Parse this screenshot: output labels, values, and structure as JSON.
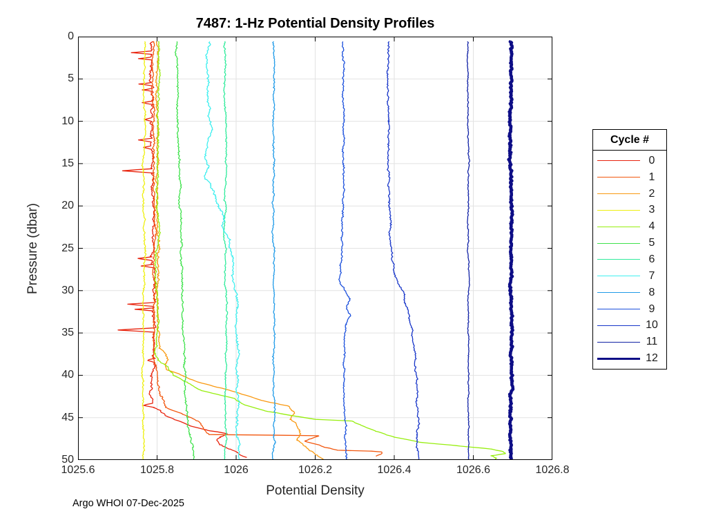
{
  "title": "7487: 1-Hz Potential Density Profiles",
  "annotation": "Argo WHOI 07-Dec-2025",
  "chart_data": {
    "type": "line",
    "title": "7487: 1-Hz Potential Density Profiles",
    "xlabel": "Potential Density",
    "ylabel": "Pressure (dbar)",
    "xlim": [
      1025.6,
      1026.8
    ],
    "ylim": [
      0,
      50
    ],
    "y_inverted": true,
    "grid": true,
    "grid_color": "#e2e2e2",
    "x_tick_values": [
      1025.6,
      1025.8,
      1026,
      1026.2,
      1026.4,
      1026.6,
      1026.8
    ],
    "x_tick_labels": [
      "1025.6",
      "1025.8",
      "1026",
      "1026.2",
      "1026.4",
      "1026.6",
      "1026.8"
    ],
    "y_tick_values": [
      0,
      5,
      10,
      15,
      20,
      25,
      30,
      35,
      40,
      45,
      50
    ],
    "y_tick_labels": [
      "0",
      "5",
      "10",
      "15",
      "20",
      "25",
      "30",
      "35",
      "40",
      "45",
      "50"
    ],
    "legend_title": "Cycle #",
    "legend_position": "right-outside",
    "series": [
      {
        "name": "0",
        "color": "#e8220c",
        "width": 1.3,
        "noise": 0.0045,
        "points": [
          [
            0.6,
            1025.785
          ],
          [
            1.7,
            1025.785
          ],
          [
            1.9,
            1025.735
          ],
          [
            2.1,
            1025.786
          ],
          [
            2.45,
            1025.786
          ],
          [
            2.6,
            1025.752
          ],
          [
            2.75,
            1025.787
          ],
          [
            5.45,
            1025.786
          ],
          [
            5.6,
            1025.757
          ],
          [
            5.8,
            1025.787
          ],
          [
            6.1,
            1025.787
          ],
          [
            6.3,
            1025.762
          ],
          [
            6.5,
            1025.786
          ],
          [
            7.6,
            1025.786
          ],
          [
            7.8,
            1025.763
          ],
          [
            8.0,
            1025.786
          ],
          [
            9.6,
            1025.787
          ],
          [
            9.8,
            1025.77
          ],
          [
            10.0,
            1025.787
          ],
          [
            12.0,
            1025.787
          ],
          [
            12.2,
            1025.752
          ],
          [
            12.45,
            1025.788
          ],
          [
            12.9,
            1025.787
          ],
          [
            13.1,
            1025.766
          ],
          [
            13.3,
            1025.787
          ],
          [
            15.6,
            1025.788
          ],
          [
            15.85,
            1025.717
          ],
          [
            16.1,
            1025.788
          ],
          [
            20.0,
            1025.789
          ],
          [
            26.0,
            1025.789
          ],
          [
            26.2,
            1025.758
          ],
          [
            26.45,
            1025.789
          ],
          [
            26.9,
            1025.789
          ],
          [
            27.1,
            1025.763
          ],
          [
            27.3,
            1025.79
          ],
          [
            31.4,
            1025.789
          ],
          [
            31.6,
            1025.722
          ],
          [
            31.85,
            1025.789
          ],
          [
            32.05,
            1025.789
          ],
          [
            32.2,
            1025.742
          ],
          [
            32.4,
            1025.79
          ],
          [
            34.4,
            1025.79
          ],
          [
            34.65,
            1025.699
          ],
          [
            34.9,
            1025.79
          ],
          [
            38.0,
            1025.79
          ],
          [
            38.25,
            1025.77
          ],
          [
            38.5,
            1025.79
          ],
          [
            43.3,
            1025.788
          ],
          [
            43.55,
            1025.764
          ],
          [
            43.8,
            1025.79
          ],
          [
            44.2,
            1025.806
          ],
          [
            44.8,
            1025.822
          ],
          [
            45.4,
            1025.853
          ],
          [
            46.0,
            1025.885
          ],
          [
            46.5,
            1025.93
          ],
          [
            46.9,
            1025.975
          ],
          [
            47.3,
            1025.955
          ],
          [
            47.7,
            1025.948
          ],
          [
            48.2,
            1025.96
          ],
          [
            48.7,
            1025.985
          ],
          [
            49.1,
            1026.009
          ],
          [
            49.45,
            1026.018
          ],
          [
            49.7,
            1026.028
          ]
        ]
      },
      {
        "name": "1",
        "color": "#f2560d",
        "width": 1.3,
        "noise": 0.0032,
        "points": [
          [
            0.6,
            1025.791
          ],
          [
            10,
            1025.792
          ],
          [
            20,
            1025.793
          ],
          [
            30,
            1025.794
          ],
          [
            38,
            1025.795
          ],
          [
            40.5,
            1025.8
          ],
          [
            42.5,
            1025.812
          ],
          [
            43.8,
            1025.825
          ],
          [
            44.6,
            1025.868
          ],
          [
            45.4,
            1025.905
          ],
          [
            46.3,
            1025.92
          ],
          [
            47.0,
            1025.93
          ],
          [
            47.08,
            1026.115
          ],
          [
            47.14,
            1026.21
          ],
          [
            47.5,
            1026.19
          ],
          [
            47.8,
            1026.175
          ],
          [
            48.2,
            1026.21
          ],
          [
            48.5,
            1026.225
          ],
          [
            48.85,
            1026.258
          ],
          [
            48.95,
            1026.34
          ],
          [
            49.05,
            1026.37
          ],
          [
            49.35,
            1026.368
          ],
          [
            49.55,
            1026.355
          ]
        ]
      },
      {
        "name": "2",
        "color": "#f9980f",
        "width": 1.3,
        "noise": 0.0032,
        "points": [
          [
            0.6,
            1025.799
          ],
          [
            10,
            1025.8
          ],
          [
            20,
            1025.802
          ],
          [
            30,
            1025.803
          ],
          [
            35.5,
            1025.805
          ],
          [
            36.8,
            1025.812
          ],
          [
            38.0,
            1025.83
          ],
          [
            39.3,
            1025.822
          ],
          [
            40.1,
            1025.868
          ],
          [
            40.8,
            1025.904
          ],
          [
            41.8,
            1025.984
          ],
          [
            43.0,
            1026.066
          ],
          [
            43.6,
            1026.131
          ],
          [
            44.5,
            1026.15
          ],
          [
            45.2,
            1026.138
          ],
          [
            45.9,
            1026.155
          ],
          [
            46.6,
            1026.162
          ],
          [
            47.6,
            1026.154
          ],
          [
            48.4,
            1026.178
          ],
          [
            48.9,
            1026.19
          ],
          [
            49.4,
            1026.205
          ],
          [
            49.9,
            1026.222
          ]
        ]
      },
      {
        "name": "3",
        "color": "#eef00d",
        "width": 1.3,
        "noise": 0.0028,
        "points": [
          [
            0.6,
            1025.768
          ],
          [
            15,
            1025.767
          ],
          [
            30,
            1025.766
          ],
          [
            45,
            1025.765
          ],
          [
            50,
            1025.764
          ]
        ]
      },
      {
        "name": "4",
        "color": "#96ee0d",
        "width": 1.3,
        "noise": 0.0032,
        "points": [
          [
            0.6,
            1025.803
          ],
          [
            10,
            1025.802
          ],
          [
            20,
            1025.801
          ],
          [
            30,
            1025.8
          ],
          [
            36.5,
            1025.8
          ],
          [
            37.3,
            1025.792
          ],
          [
            38.2,
            1025.803
          ],
          [
            38.9,
            1025.822
          ],
          [
            40.0,
            1025.84
          ],
          [
            40.8,
            1025.872
          ],
          [
            41.8,
            1025.906
          ],
          [
            42.7,
            1025.991
          ],
          [
            43.5,
            1026.02
          ],
          [
            44.2,
            1026.072
          ],
          [
            44.8,
            1026.148
          ],
          [
            45.2,
            1026.2
          ],
          [
            45.4,
            1026.295
          ],
          [
            45.9,
            1026.315
          ],
          [
            46.6,
            1026.35
          ],
          [
            47.3,
            1026.4
          ],
          [
            47.9,
            1026.46
          ],
          [
            48.3,
            1026.55
          ],
          [
            48.7,
            1026.64
          ],
          [
            49.0,
            1026.668
          ],
          [
            49.25,
            1026.678
          ],
          [
            49.5,
            1026.643
          ],
          [
            49.8,
            1026.658
          ],
          [
            50,
            1026.655
          ]
        ]
      },
      {
        "name": "5",
        "color": "#3ee24b",
        "width": 1.3,
        "noise": 0.003,
        "points": [
          [
            0.6,
            1025.851
          ],
          [
            10,
            1025.855
          ],
          [
            20,
            1025.858
          ],
          [
            30,
            1025.864
          ],
          [
            38,
            1025.868
          ],
          [
            42,
            1025.872
          ],
          [
            45,
            1025.878
          ],
          [
            47,
            1025.882
          ],
          [
            48.5,
            1025.888
          ],
          [
            50,
            1025.89
          ]
        ]
      },
      {
        "name": "6",
        "color": "#2feb9b",
        "width": 1.3,
        "noise": 0.0026,
        "points": [
          [
            0.6,
            1025.973
          ],
          [
            8,
            1025.971
          ],
          [
            12,
            1025.976
          ],
          [
            20,
            1025.972
          ],
          [
            28,
            1025.974
          ],
          [
            36,
            1025.976
          ],
          [
            44,
            1025.973
          ],
          [
            50,
            1025.974
          ]
        ]
      },
      {
        "name": "7",
        "color": "#3fefef",
        "width": 1.3,
        "noise": 0.004,
        "points": [
          [
            0.6,
            1025.932
          ],
          [
            4,
            1025.931
          ],
          [
            7,
            1025.928
          ],
          [
            9,
            1025.933
          ],
          [
            11,
            1025.94
          ],
          [
            12,
            1025.928
          ],
          [
            14.5,
            1025.92
          ],
          [
            15.5,
            1025.928
          ],
          [
            16.5,
            1025.918
          ],
          [
            17.5,
            1025.932
          ],
          [
            18.8,
            1025.948
          ],
          [
            20,
            1025.958
          ],
          [
            21.3,
            1025.973
          ],
          [
            22.5,
            1025.968
          ],
          [
            24,
            1025.984
          ],
          [
            26,
            1025.99
          ],
          [
            28,
            1025.988
          ],
          [
            30,
            1025.995
          ],
          [
            32,
            1026.002
          ],
          [
            34,
            1025.998
          ],
          [
            36,
            1026.004
          ],
          [
            38,
            1026.0
          ],
          [
            40,
            1026.004
          ],
          [
            42,
            1026.0
          ],
          [
            44,
            1026.004
          ],
          [
            46,
            1026.002
          ],
          [
            48,
            1026.006
          ],
          [
            50,
            1026.009
          ]
        ]
      },
      {
        "name": "8",
        "color": "#1e9ae8",
        "width": 1.3,
        "noise": 0.0026,
        "points": [
          [
            0.6,
            1026.094
          ],
          [
            10,
            1026.095
          ],
          [
            20,
            1026.094
          ],
          [
            30,
            1026.096
          ],
          [
            40,
            1026.095
          ],
          [
            48,
            1026.096
          ],
          [
            49.5,
            1026.09
          ],
          [
            50,
            1026.094
          ]
        ]
      },
      {
        "name": "9",
        "color": "#1a4fdc",
        "width": 1.3,
        "noise": 0.003,
        "points": [
          [
            0.6,
            1026.272
          ],
          [
            5,
            1026.271
          ],
          [
            10,
            1026.27
          ],
          [
            15,
            1026.272
          ],
          [
            20,
            1026.271
          ],
          [
            27,
            1026.268
          ],
          [
            29,
            1026.263
          ],
          [
            30,
            1026.275
          ],
          [
            31,
            1026.29
          ],
          [
            32,
            1026.282
          ],
          [
            33,
            1026.288
          ],
          [
            34,
            1026.278
          ],
          [
            36,
            1026.274
          ],
          [
            40,
            1026.273
          ],
          [
            44,
            1026.275
          ],
          [
            48,
            1026.276
          ],
          [
            50,
            1026.277
          ]
        ]
      },
      {
        "name": "10",
        "color": "#1634c8",
        "width": 1.3,
        "noise": 0.003,
        "points": [
          [
            0.6,
            1026.386
          ],
          [
            5,
            1026.385
          ],
          [
            10,
            1026.387
          ],
          [
            15,
            1026.386
          ],
          [
            20,
            1026.388
          ],
          [
            24,
            1026.39
          ],
          [
            26,
            1026.396
          ],
          [
            28,
            1026.405
          ],
          [
            29.5,
            1026.415
          ],
          [
            30.5,
            1026.424
          ],
          [
            31.5,
            1026.43
          ],
          [
            33,
            1026.44
          ],
          [
            35,
            1026.446
          ],
          [
            37,
            1026.45
          ],
          [
            39,
            1026.453
          ],
          [
            41,
            1026.456
          ],
          [
            43,
            1026.459
          ],
          [
            45,
            1026.461
          ],
          [
            47,
            1026.459
          ],
          [
            49,
            1026.461
          ],
          [
            50,
            1026.46
          ]
        ]
      },
      {
        "name": "11",
        "color": "#1021a5",
        "width": 1.3,
        "noise": 0.0018,
        "points": [
          [
            0.6,
            1026.586
          ],
          [
            10,
            1026.587
          ],
          [
            20,
            1026.586
          ],
          [
            30,
            1026.588
          ],
          [
            40,
            1026.587
          ],
          [
            50,
            1026.588
          ]
        ]
      },
      {
        "name": "12",
        "color": "#0d0d86",
        "width": 4.5,
        "noise": 0.003,
        "points": [
          [
            0.6,
            1026.695
          ],
          [
            10,
            1026.694
          ],
          [
            20,
            1026.696
          ],
          [
            30,
            1026.695
          ],
          [
            40,
            1026.695
          ],
          [
            50,
            1026.695
          ]
        ]
      }
    ]
  }
}
